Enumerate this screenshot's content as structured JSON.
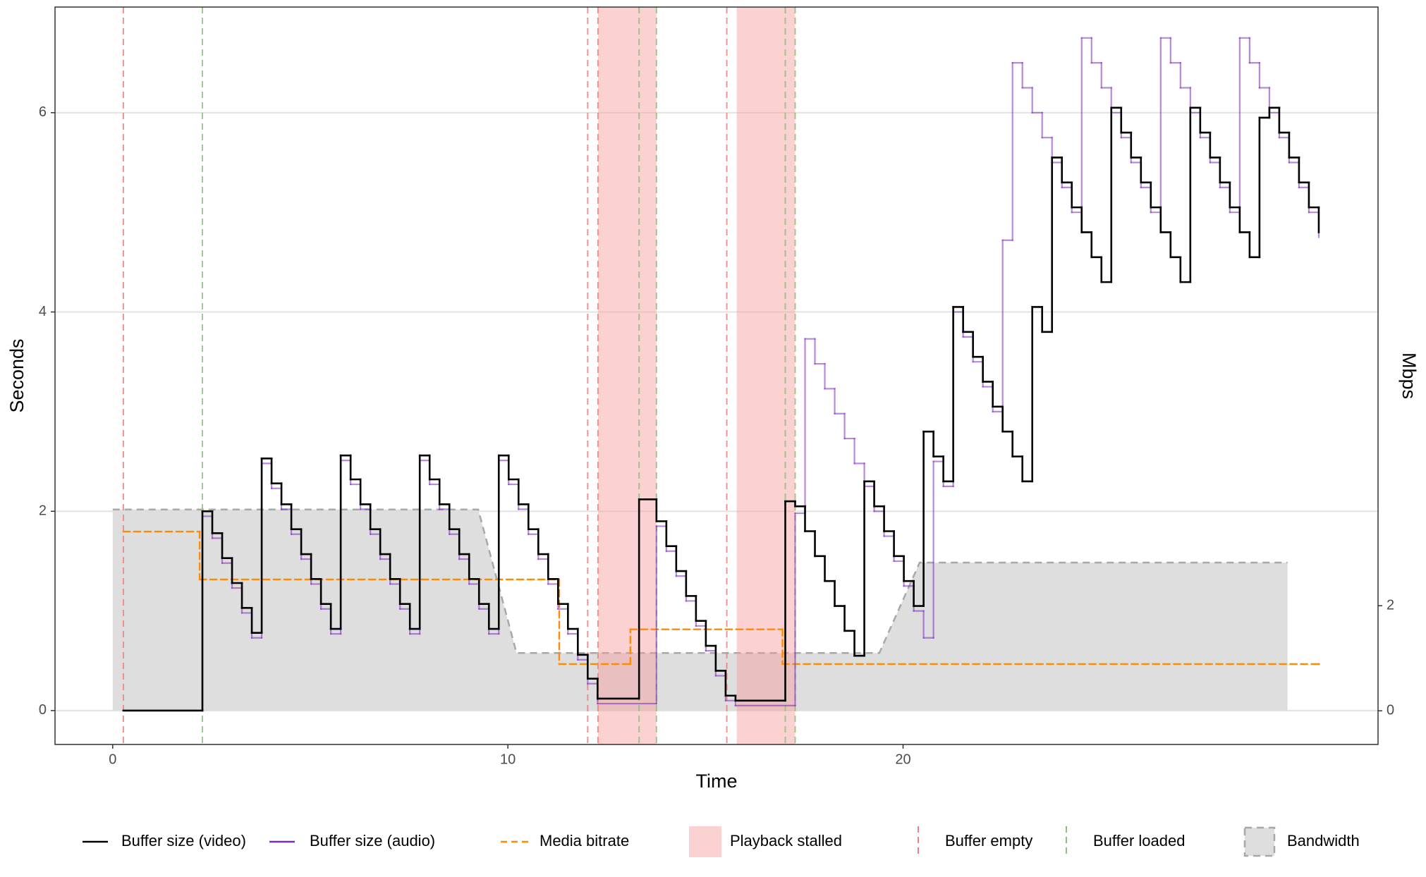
{
  "chart_data": {
    "type": "step",
    "xlabel": "Time",
    "ylabel": "Seconds",
    "y2label": "Mbps",
    "xlim": [
      -1.46,
      32.02
    ],
    "ylim": [
      -0.34,
      7.06
    ],
    "y2lim": [
      -0.64,
      13.39
    ],
    "xticks": [
      0,
      10,
      20
    ],
    "yticks": [
      0,
      2,
      4,
      6
    ],
    "y2ticks": [
      0,
      2
    ],
    "grid": true,
    "legend": "bottom",
    "series": [
      {
        "name": "Buffer size (video)",
        "color": "#000000",
        "style": "step",
        "x": [
          0.27,
          2.27,
          2.52,
          2.77,
          3.02,
          3.27,
          3.52,
          3.77,
          4.02,
          4.27,
          4.52,
          4.77,
          5.02,
          5.27,
          5.52,
          5.77,
          6.02,
          6.27,
          6.52,
          6.77,
          7.02,
          7.27,
          7.52,
          7.77,
          8.02,
          8.27,
          8.52,
          8.77,
          9.02,
          9.27,
          9.52,
          9.77,
          10.02,
          10.27,
          10.52,
          10.77,
          11.02,
          11.27,
          11.52,
          11.77,
          12.02,
          12.27,
          13.32,
          13.76,
          14.01,
          14.26,
          14.51,
          14.76,
          15.01,
          15.26,
          15.51,
          15.76,
          17.02,
          17.27,
          17.52,
          17.77,
          18.02,
          18.27,
          18.52,
          18.77,
          19.02,
          19.27,
          19.52,
          19.77,
          20.02,
          20.27,
          20.52,
          20.77,
          21.02,
          21.27,
          21.52,
          21.77,
          22.02,
          22.27,
          22.52,
          22.77,
          23.02,
          23.27,
          23.52,
          23.77,
          24.02,
          24.27,
          24.52,
          24.77,
          25.02,
          25.27,
          25.52,
          25.77,
          26.02,
          26.27,
          26.52,
          26.77,
          27.02,
          27.27,
          27.52,
          27.77,
          28.02,
          28.27,
          28.52,
          28.77,
          29.02,
          29.27,
          29.52,
          29.77,
          30.02,
          30.27,
          30.52
        ],
        "values": [
          0,
          2.0,
          1.78,
          1.53,
          1.28,
          1.03,
          0.78,
          2.53,
          2.28,
          2.07,
          1.82,
          1.57,
          1.32,
          1.07,
          0.82,
          2.56,
          2.32,
          2.07,
          1.82,
          1.57,
          1.32,
          1.07,
          0.82,
          2.56,
          2.32,
          2.07,
          1.82,
          1.57,
          1.32,
          1.07,
          0.82,
          2.56,
          2.32,
          2.07,
          1.82,
          1.57,
          1.32,
          1.07,
          0.82,
          0.56,
          0.32,
          0.12,
          2.12,
          1.9,
          1.65,
          1.4,
          1.15,
          0.9,
          0.65,
          0.4,
          0.15,
          0.1,
          2.1,
          2.05,
          1.8,
          1.55,
          1.3,
          1.05,
          0.8,
          0.55,
          2.3,
          2.05,
          1.8,
          1.55,
          1.3,
          1.05,
          2.8,
          2.55,
          2.3,
          4.05,
          3.8,
          3.55,
          3.3,
          3.05,
          2.8,
          2.55,
          2.3,
          4.05,
          3.8,
          5.55,
          5.3,
          5.05,
          4.8,
          4.55,
          4.3,
          6.05,
          5.8,
          5.55,
          5.3,
          5.05,
          4.8,
          4.55,
          4.3,
          6.05,
          5.8,
          5.55,
          5.3,
          5.05,
          4.8,
          4.55,
          5.95,
          6.05,
          5.8,
          5.55,
          5.3,
          5.05,
          4.8
        ]
      },
      {
        "name": "Buffer size (audio)",
        "color": "#7b2cbf",
        "style": "step",
        "x": [
          0.27,
          2.27,
          2.52,
          2.77,
          3.02,
          3.27,
          3.52,
          3.77,
          4.02,
          4.27,
          4.52,
          4.77,
          5.02,
          5.27,
          5.52,
          5.77,
          6.02,
          6.27,
          6.52,
          6.77,
          7.02,
          7.27,
          7.52,
          7.77,
          8.02,
          8.27,
          8.52,
          8.77,
          9.02,
          9.27,
          9.52,
          9.77,
          10.02,
          10.27,
          10.52,
          10.77,
          11.02,
          11.27,
          11.52,
          11.77,
          12.02,
          12.27,
          13.76,
          14.01,
          14.26,
          14.51,
          14.76,
          15.01,
          15.26,
          15.51,
          15.76,
          17.27,
          17.52,
          17.77,
          18.02,
          18.27,
          18.52,
          18.77,
          19.02,
          19.27,
          19.52,
          19.77,
          20.02,
          20.27,
          20.52,
          20.77,
          21.02,
          21.27,
          21.52,
          21.77,
          22.02,
          22.27,
          22.52,
          22.77,
          23.02,
          23.27,
          23.52,
          23.77,
          24.02,
          24.27,
          24.52,
          24.77,
          25.02,
          25.27,
          25.52,
          25.77,
          26.02,
          26.27,
          26.52,
          26.77,
          27.02,
          27.27,
          27.52,
          27.77,
          28.02,
          28.27,
          28.52,
          28.77,
          29.02,
          29.27,
          29.52,
          29.77,
          30.02,
          30.27,
          30.52
        ],
        "values": [
          0,
          1.95,
          1.73,
          1.48,
          1.23,
          0.98,
          0.73,
          2.48,
          2.23,
          2.02,
          1.77,
          1.52,
          1.27,
          1.02,
          0.77,
          2.51,
          2.27,
          2.02,
          1.77,
          1.52,
          1.27,
          1.02,
          0.77,
          2.51,
          2.27,
          2.02,
          1.77,
          1.52,
          1.27,
          1.02,
          0.77,
          2.51,
          2.27,
          2.02,
          1.77,
          1.52,
          1.27,
          1.02,
          0.77,
          0.51,
          0.27,
          0.07,
          1.85,
          1.6,
          1.35,
          1.1,
          0.85,
          0.6,
          0.35,
          0.1,
          0.05,
          1.98,
          3.73,
          3.48,
          3.23,
          2.98,
          2.73,
          2.48,
          2.25,
          2.0,
          1.75,
          1.5,
          1.25,
          1.0,
          0.73,
          2.5,
          2.25,
          4.0,
          3.75,
          3.5,
          3.25,
          3.0,
          4.72,
          6.5,
          6.25,
          6.0,
          5.75,
          5.5,
          5.25,
          5.0,
          6.75,
          6.5,
          6.25,
          6.0,
          5.75,
          5.5,
          5.25,
          5.0,
          6.75,
          6.5,
          6.25,
          6.0,
          5.75,
          5.5,
          5.25,
          5.0,
          6.75,
          6.5,
          6.25,
          6.0,
          5.75,
          5.5,
          5.25,
          5.0,
          4.75
        ]
      },
      {
        "name": "Media bitrate",
        "color": "#ff8c00",
        "style": "dashed-step",
        "axis": "y2",
        "x": [
          0.27,
          2.2,
          11.3,
          13.1,
          16.95,
          30.52
        ],
        "values": [
          3.41,
          2.5,
          0.89,
          1.55,
          0.89,
          0.89
        ]
      },
      {
        "name": "Playback stalled",
        "color": "#f89a9a",
        "style": "span",
        "starts": [
          12.28,
          15.79
        ],
        "ends": [
          13.76,
          17.27
        ]
      },
      {
        "name": "Buffer empty",
        "color": "#f08080",
        "style": "vline",
        "x": [
          0.27,
          12.02,
          12.28,
          15.54
        ]
      },
      {
        "name": "Buffer loaded",
        "color": "#8fbf80",
        "style": "vline",
        "x": [
          2.27,
          13.32,
          13.76,
          17.02,
          17.27
        ]
      },
      {
        "name": "Bandwidth",
        "color": "#dedede",
        "style": "area",
        "axis": "y2",
        "x": [
          0,
          9.25,
          10.22,
          19.4,
          20.42,
          29.73
        ],
        "values": [
          3.83,
          3.83,
          1.1,
          1.1,
          2.82,
          2.82
        ]
      }
    ]
  }
}
